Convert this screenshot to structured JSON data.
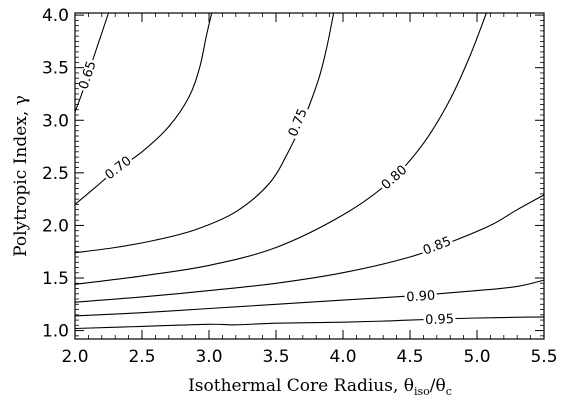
{
  "chart_data": {
    "type": "contour",
    "xlabel": "Isothermal Core Radius, θ",
    "xlabel_sub1": "iso",
    "xlabel_sep": "/θ",
    "xlabel_sub2": "c",
    "ylabel": "Polytropic Index, γ",
    "xlim": [
      2.0,
      5.5
    ],
    "ylim": [
      0.92,
      4.02
    ],
    "xticks": [
      "2.0",
      "2.5",
      "3.0",
      "3.5",
      "4.0",
      "4.5",
      "5.0",
      "5.5"
    ],
    "xtick_values": [
      2.0,
      2.5,
      3.0,
      3.5,
      4.0,
      4.5,
      5.0,
      5.5
    ],
    "yticks": [
      "1.0",
      "1.5",
      "2.0",
      "2.5",
      "3.0",
      "3.5",
      "4.0"
    ],
    "ytick_values": [
      1.0,
      1.5,
      2.0,
      2.5,
      3.0,
      3.5,
      4.0
    ],
    "grid": false,
    "legend": false,
    "contours": [
      {
        "level": "0.65",
        "points": [
          [
            2.0,
            3.08
          ],
          [
            2.05,
            3.25
          ],
          [
            2.1,
            3.45
          ],
          [
            2.15,
            3.64
          ],
          [
            2.2,
            3.83
          ],
          [
            2.25,
            4.02
          ]
        ],
        "label_at": [
          2.09,
          3.43
        ]
      },
      {
        "level": "0.70",
        "points": [
          [
            2.0,
            2.2
          ],
          [
            2.15,
            2.36
          ],
          [
            2.3,
            2.52
          ],
          [
            2.5,
            2.7
          ],
          [
            2.7,
            2.94
          ],
          [
            2.85,
            3.22
          ],
          [
            2.93,
            3.5
          ],
          [
            2.98,
            3.8
          ],
          [
            3.02,
            4.02
          ]
        ],
        "label_at": [
          2.32,
          2.55
        ]
      },
      {
        "level": "0.75",
        "points": [
          [
            2.0,
            1.74
          ],
          [
            2.3,
            1.79
          ],
          [
            2.6,
            1.86
          ],
          [
            2.9,
            1.96
          ],
          [
            3.2,
            2.13
          ],
          [
            3.45,
            2.4
          ],
          [
            3.6,
            2.72
          ],
          [
            3.72,
            3.05
          ],
          [
            3.82,
            3.4
          ],
          [
            3.88,
            3.7
          ],
          [
            3.93,
            4.02
          ]
        ],
        "label_at": [
          3.66,
          2.98
        ]
      },
      {
        "level": "0.80",
        "points": [
          [
            2.0,
            1.44
          ],
          [
            2.5,
            1.52
          ],
          [
            3.0,
            1.62
          ],
          [
            3.5,
            1.79
          ],
          [
            4.0,
            2.1
          ],
          [
            4.35,
            2.42
          ],
          [
            4.6,
            2.78
          ],
          [
            4.8,
            3.2
          ],
          [
            4.95,
            3.62
          ],
          [
            5.07,
            4.02
          ]
        ],
        "label_at": [
          4.38,
          2.46
        ]
      },
      {
        "level": "0.85",
        "points": [
          [
            2.0,
            1.27
          ],
          [
            2.5,
            1.32
          ],
          [
            3.0,
            1.38
          ],
          [
            3.5,
            1.45
          ],
          [
            4.0,
            1.55
          ],
          [
            4.5,
            1.7
          ],
          [
            4.8,
            1.84
          ],
          [
            5.1,
            2.0
          ],
          [
            5.3,
            2.15
          ],
          [
            5.5,
            2.29
          ]
        ],
        "label_at": [
          4.7,
          1.81
        ]
      },
      {
        "level": "0.90",
        "points": [
          [
            2.0,
            1.14
          ],
          [
            2.5,
            1.17
          ],
          [
            3.0,
            1.21
          ],
          [
            3.5,
            1.25
          ],
          [
            4.0,
            1.29
          ],
          [
            4.5,
            1.33
          ],
          [
            5.0,
            1.38
          ],
          [
            5.3,
            1.42
          ],
          [
            5.5,
            1.48
          ]
        ],
        "label_at": [
          4.58,
          1.33
        ]
      },
      {
        "level": "0.95",
        "points": [
          [
            2.0,
            1.02
          ],
          [
            2.5,
            1.04
          ],
          [
            3.0,
            1.06
          ],
          [
            3.2,
            1.055
          ],
          [
            3.5,
            1.07
          ],
          [
            4.0,
            1.08
          ],
          [
            4.3,
            1.09
          ],
          [
            4.5,
            1.1
          ],
          [
            5.0,
            1.12
          ],
          [
            5.5,
            1.13
          ]
        ],
        "label_at": [
          4.72,
          1.11
        ]
      }
    ]
  }
}
